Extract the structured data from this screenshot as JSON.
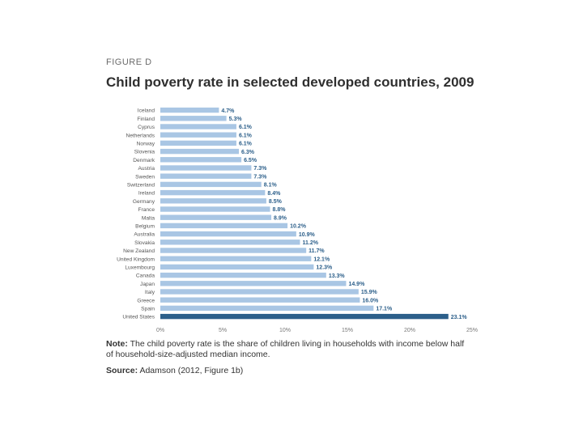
{
  "figure": {
    "label": "FIGURE D",
    "title": "Child poverty rate in selected developed countries, 2009",
    "note_prefix": "Note:",
    "note_text": "The child poverty rate is the share of children living in households with income below half of household-size-adjusted median income.",
    "source_prefix": "Source:",
    "source_text": "Adamson (2012, Figure 1b)"
  },
  "colors": {
    "bar": "#a9c6e4",
    "highlight_bar": "#2c5f8a",
    "value_label": "#2c5f8a",
    "axis_text": "#777777"
  },
  "chart_data": {
    "type": "bar",
    "orientation": "horizontal",
    "title": "Child poverty rate in selected developed countries, 2009",
    "xlabel": "",
    "ylabel": "",
    "xlim": [
      0,
      25
    ],
    "xticks": [
      "0%",
      "5%",
      "10%",
      "15%",
      "20%",
      "25%"
    ],
    "xtick_values": [
      0,
      5,
      10,
      15,
      20,
      25
    ],
    "highlight": "United States",
    "categories": [
      "Iceland",
      "Finland",
      "Cyprus",
      "Netherlands",
      "Norway",
      "Slovenia",
      "Denmark",
      "Austria",
      "Sweden",
      "Switzerland",
      "Ireland",
      "Germany",
      "France",
      "Malta",
      "Belgium",
      "Australia",
      "Slovakia",
      "New Zealand",
      "United Kingdom",
      "Luxembourg",
      "Canada",
      "Japan",
      "Italy",
      "Greece",
      "Spain",
      "United States"
    ],
    "values": [
      4.7,
      5.3,
      6.1,
      6.1,
      6.1,
      6.3,
      6.5,
      7.3,
      7.3,
      8.1,
      8.4,
      8.5,
      8.8,
      8.9,
      10.2,
      10.9,
      11.2,
      11.7,
      12.1,
      12.3,
      13.3,
      14.9,
      15.9,
      16.0,
      17.1,
      23.1
    ],
    "value_labels": [
      "4.7%",
      "5.3%",
      "6.1%",
      "6.1%",
      "6.1%",
      "6.3%",
      "6.5%",
      "7.3%",
      "7.3%",
      "8.1%",
      "8.4%",
      "8.5%",
      "8.8%",
      "8.9%",
      "10.2%",
      "10.9%",
      "11.2%",
      "11.7%",
      "12.1%",
      "12.3%",
      "13.3%",
      "14.9%",
      "15.9%",
      "16.0%",
      "17.1%",
      "23.1%"
    ]
  }
}
